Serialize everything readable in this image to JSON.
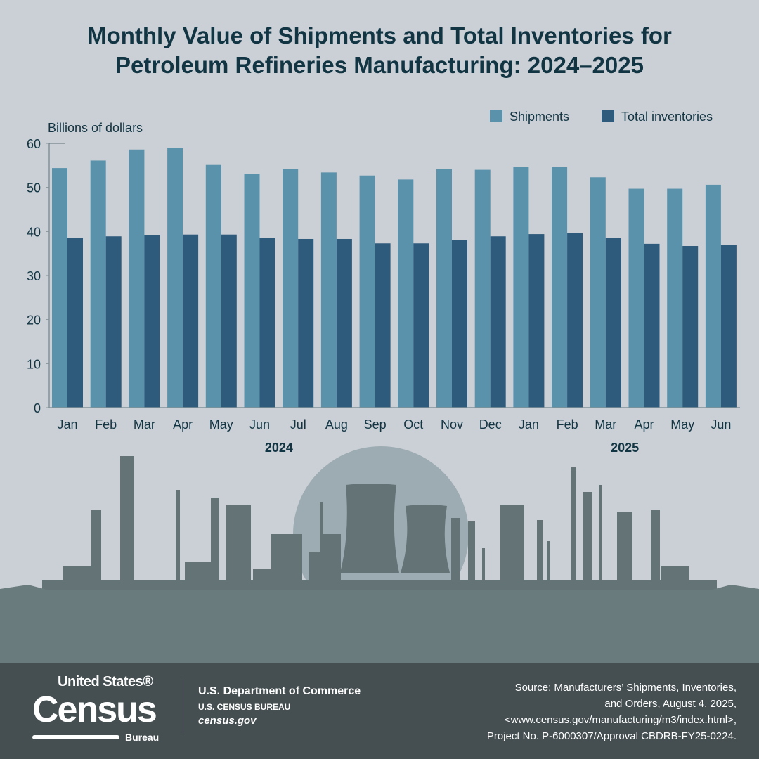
{
  "title_line1": "Monthly Value of Shipments and Total Inventories for",
  "title_line2": "Petroleum Refineries Manufacturing: 2024–2025",
  "chart_data": {
    "type": "bar",
    "ylabel": "Billions of dollars",
    "ylim": [
      0,
      60
    ],
    "yticks": [
      0,
      10,
      20,
      30,
      40,
      50,
      60
    ],
    "categories": [
      "Jan",
      "Feb",
      "Mar",
      "Apr",
      "May",
      "Jun",
      "Jul",
      "Aug",
      "Sep",
      "Oct",
      "Nov",
      "Dec",
      "Jan",
      "Feb",
      "Mar",
      "Apr",
      "May",
      "Jun"
    ],
    "year_labels": [
      {
        "label": "2024",
        "span": [
          0,
          11
        ]
      },
      {
        "label": "2025",
        "span": [
          12,
          17
        ]
      }
    ],
    "legend_position": "top-right",
    "series": [
      {
        "name": "Shipments",
        "color": "#5b92ab",
        "values": [
          54.4,
          56.1,
          58.6,
          59.0,
          55.1,
          53.0,
          54.2,
          53.4,
          52.7,
          51.8,
          54.1,
          54.0,
          54.6,
          54.7,
          52.3,
          49.7,
          49.7,
          50.6
        ]
      },
      {
        "name": "Total inventories",
        "color": "#2e5a7c",
        "values": [
          38.6,
          38.9,
          39.1,
          39.3,
          39.3,
          38.5,
          38.3,
          38.3,
          37.3,
          37.3,
          38.1,
          38.9,
          39.4,
          39.6,
          38.6,
          37.2,
          36.7,
          36.9
        ]
      }
    ]
  },
  "footer": {
    "logo_text": "United States® Census Bureau",
    "dept": "U.S. Department of Commerce",
    "bureau": "U.S. CENSUS BUREAU",
    "site": "census.gov",
    "source_lines": [
      "Source: Manufacturers’ Shipments, Inventories,",
      "and Orders, August 4, 2025,",
      "<www.census.gov/manufacturing/m3/index.html>,",
      "Project No. P-6000307/Approval CBDRB-FY25-0224."
    ]
  }
}
